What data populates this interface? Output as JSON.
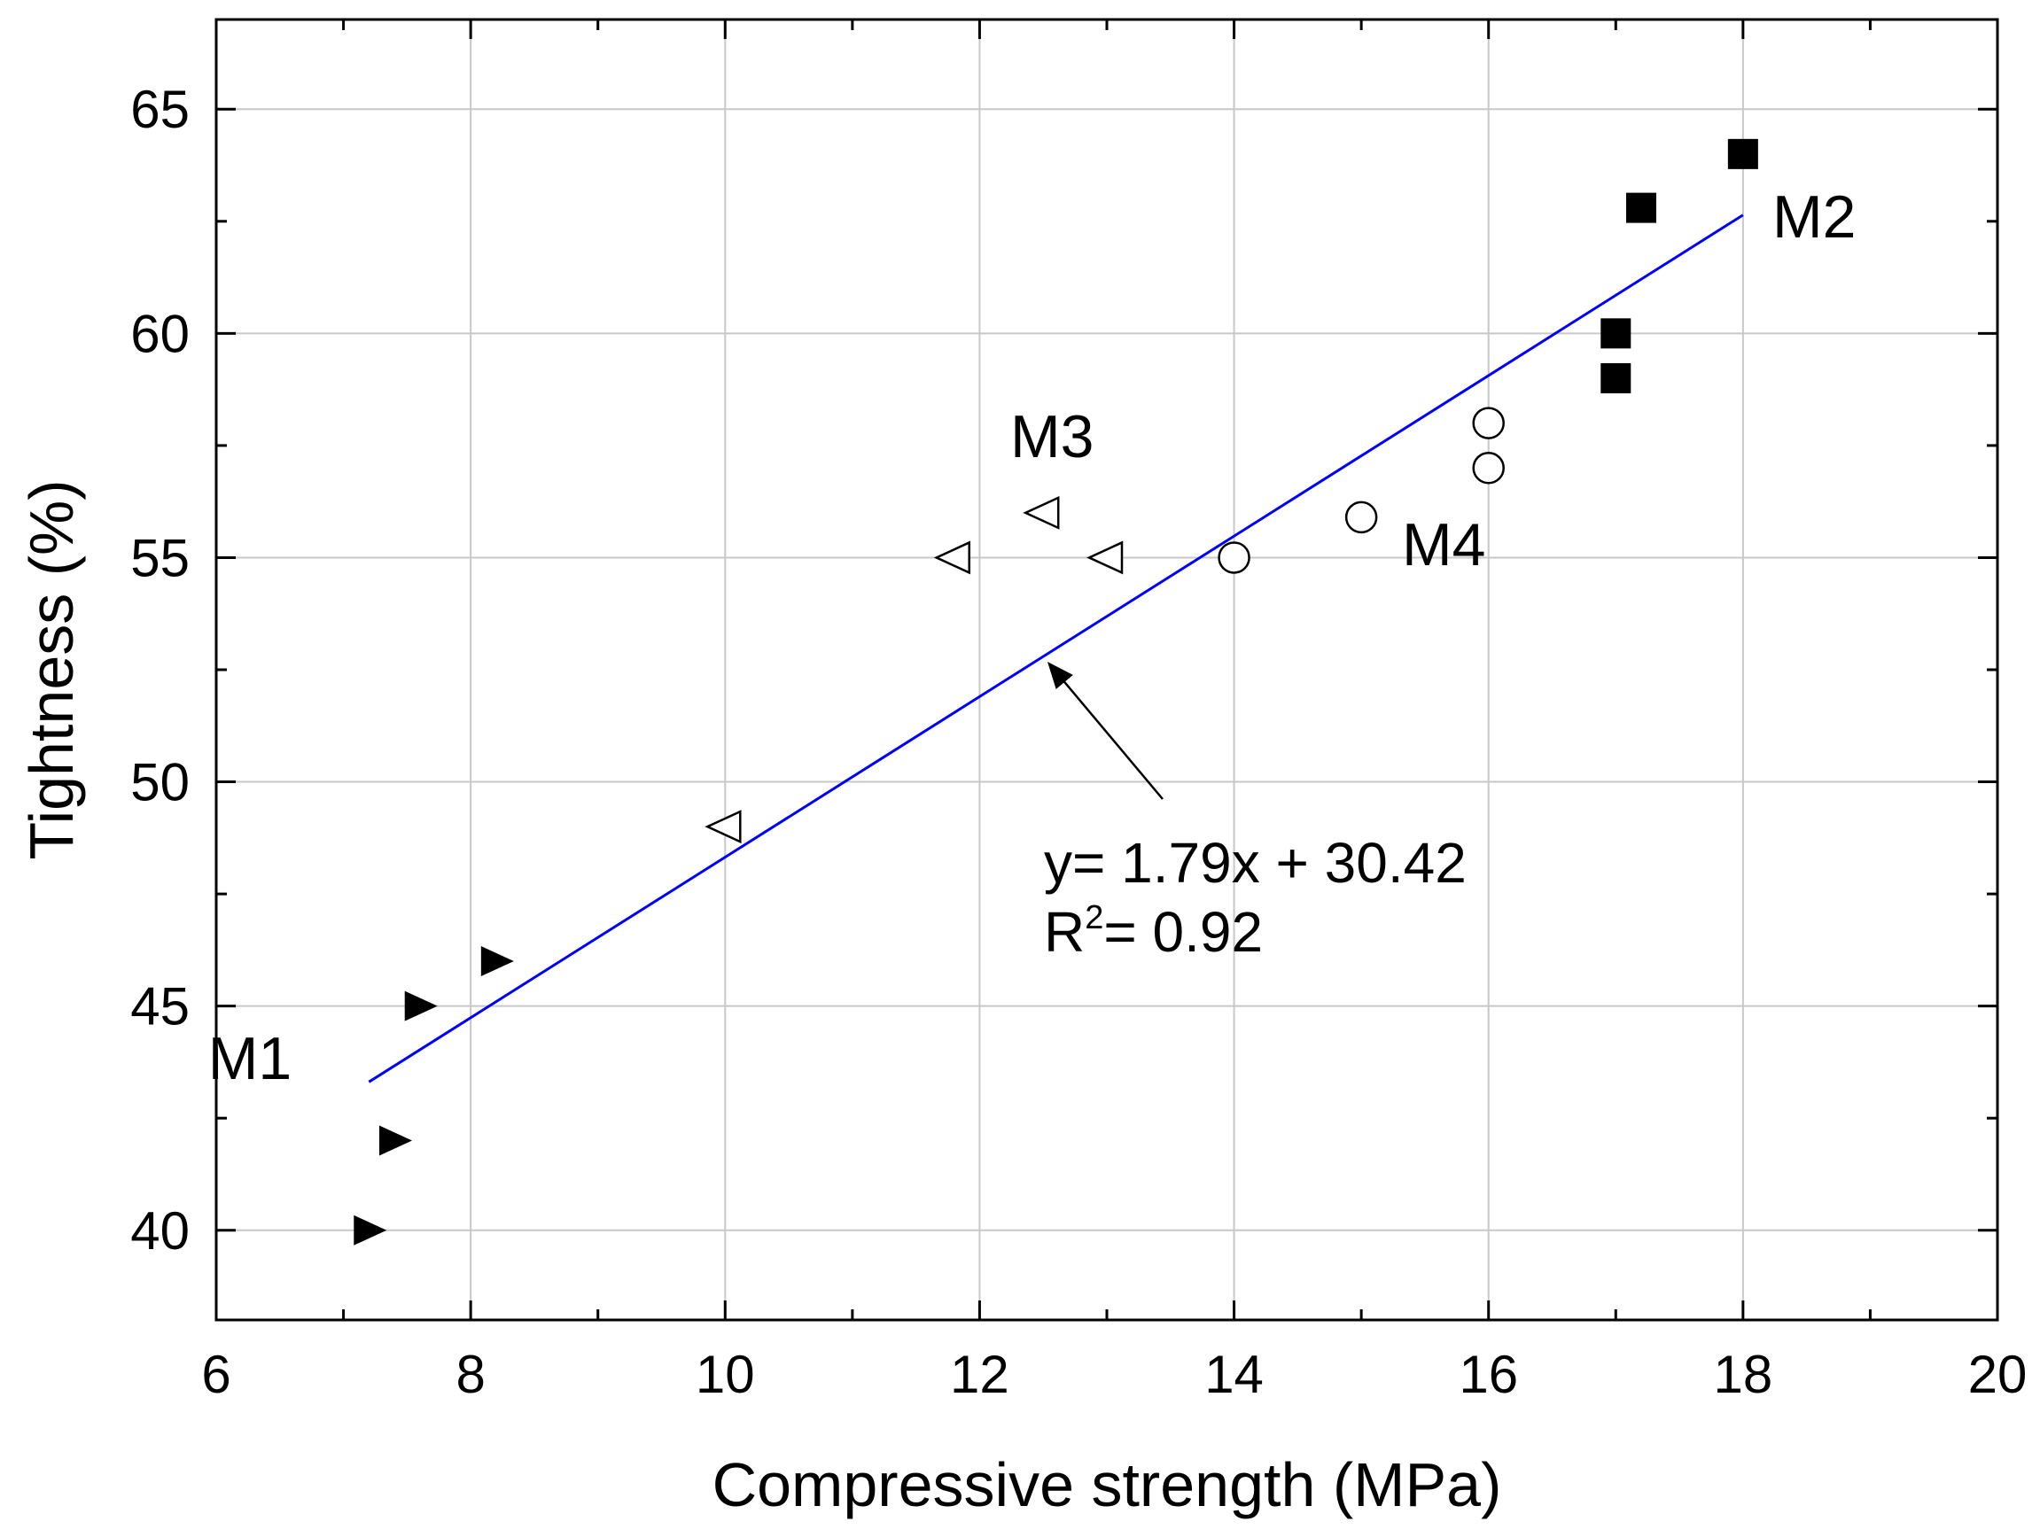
{
  "chart_data": {
    "type": "scatter",
    "title": "",
    "xlabel": "Compressive strength (MPa)",
    "ylabel": "Tightness (%)",
    "xlim": [
      6,
      20
    ],
    "ylim": [
      38,
      67
    ],
    "xticks": [
      6,
      8,
      10,
      12,
      14,
      16,
      18,
      20
    ],
    "yticks": [
      40,
      45,
      50,
      55,
      60,
      65
    ],
    "grid": true,
    "series": [
      {
        "name": "M1",
        "marker": "filled-right-triangle",
        "points": [
          [
            7.2,
            40
          ],
          [
            7.4,
            42
          ],
          [
            7.6,
            45
          ],
          [
            8.2,
            46
          ]
        ]
      },
      {
        "name": "M2",
        "marker": "filled-square",
        "points": [
          [
            17,
            59
          ],
          [
            17,
            60
          ],
          [
            17.2,
            62.8
          ],
          [
            18,
            64
          ]
        ]
      },
      {
        "name": "M3",
        "marker": "open-left-triangle",
        "points": [
          [
            10,
            49
          ],
          [
            11.8,
            55
          ],
          [
            12.5,
            56
          ],
          [
            13,
            55
          ]
        ]
      },
      {
        "name": "M4",
        "marker": "open-circle",
        "points": [
          [
            14,
            55
          ],
          [
            15,
            55.9
          ],
          [
            16,
            57
          ],
          [
            16,
            58
          ]
        ]
      }
    ],
    "fit_line": {
      "slope": 1.79,
      "intercept": 30.42,
      "x_range": [
        7.2,
        18
      ],
      "color": "#0000ff"
    },
    "annotation": {
      "equation": "y= 1.79x + 30.42",
      "r2_prefix": "R",
      "r2_superscript": "2",
      "r2_value": "= 0.92",
      "arrow_to": [
        12.5,
        52.8
      ]
    },
    "colors": {
      "fit_line": "#0000ff",
      "grid": "#c8c8c8",
      "marker": "#000000"
    }
  }
}
